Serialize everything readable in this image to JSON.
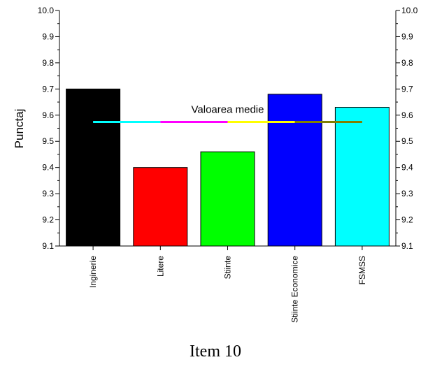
{
  "chart_data": {
    "type": "bar",
    "categories": [
      "Inginerie",
      "Litere",
      "Stiinte",
      "Stiinte Economice",
      "FSMSS"
    ],
    "values": [
      9.7,
      9.4,
      9.46,
      9.68,
      9.63
    ],
    "bar_colors": [
      "#000000",
      "#ff0000",
      "#00ff00",
      "#0000ff",
      "#00ffff"
    ],
    "ylabel": "Punctaj",
    "ylim": [
      9.1,
      10.0
    ],
    "yticks": [
      "9.1",
      "9.2",
      "9.3",
      "9.4",
      "9.5",
      "9.6",
      "9.7",
      "9.8",
      "9.9",
      "10.0"
    ],
    "right_axis": true,
    "grid": false,
    "mean": {
      "label": "Valoarea medie",
      "value": 9.574,
      "segment_colors": [
        "#00ffff",
        "#ff00ff",
        "#ffff00",
        "#808000"
      ]
    },
    "caption": "Item 10"
  }
}
